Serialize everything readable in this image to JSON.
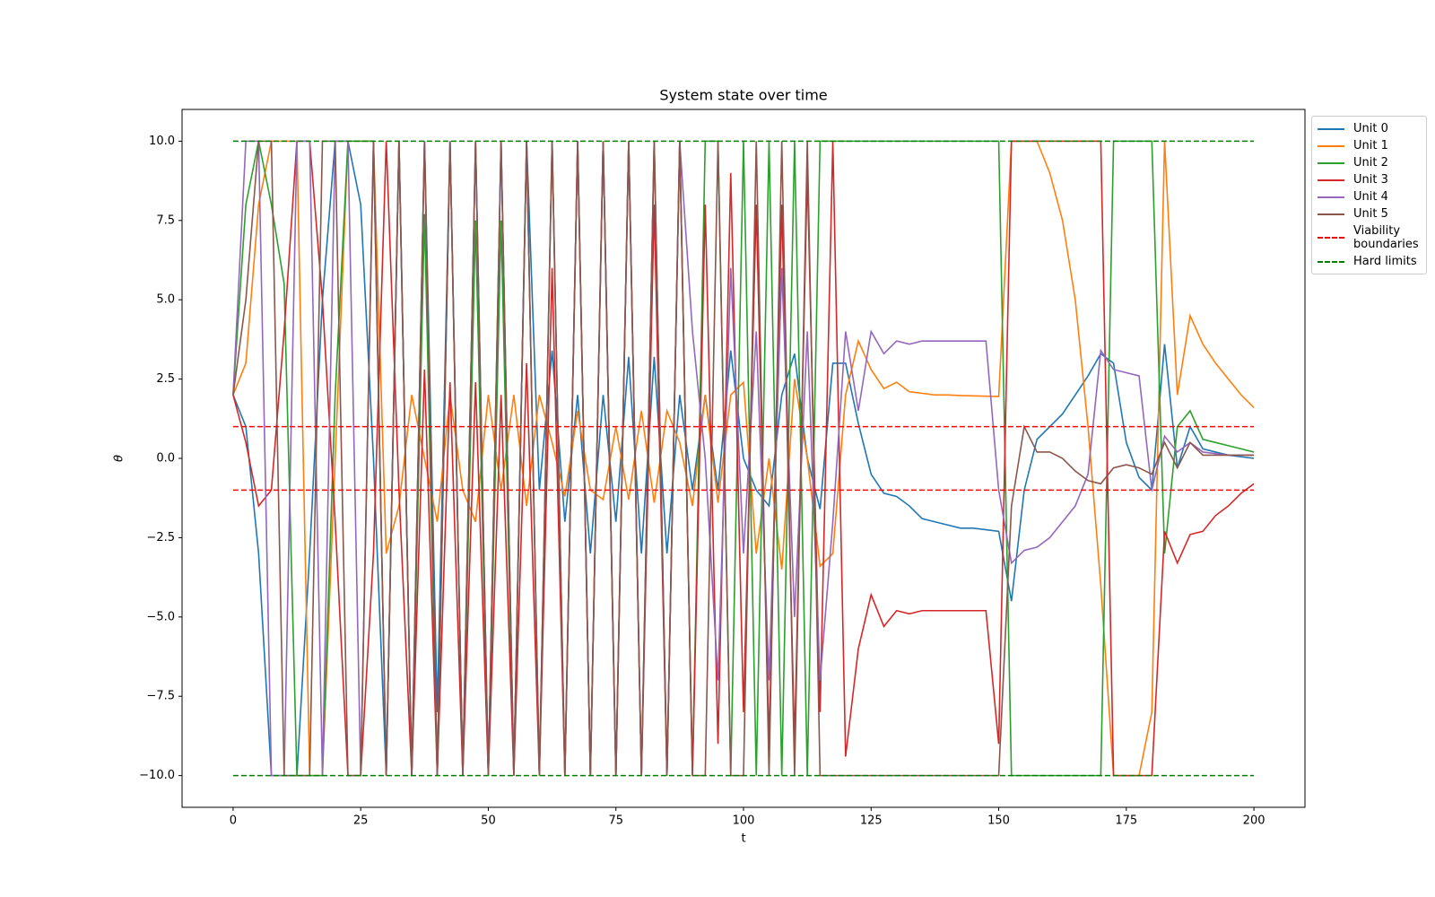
{
  "chart_data": {
    "type": "line",
    "title": "System state over time",
    "xlabel": "t",
    "ylabel": "θ",
    "x": [
      0,
      2.5,
      5,
      7.5,
      10,
      12.5,
      15,
      17.5,
      20,
      22.5,
      25,
      27.5,
      30,
      32.5,
      35,
      37.5,
      40,
      42.5,
      45,
      47.5,
      50,
      52.5,
      55,
      57.5,
      60,
      62.5,
      65,
      67.5,
      70,
      72.5,
      75,
      77.5,
      80,
      82.5,
      85,
      87.5,
      90,
      92.5,
      95,
      97.5,
      100,
      102.5,
      105,
      107.5,
      110,
      112.5,
      115,
      117.5,
      120,
      122.5,
      125,
      127.5,
      130,
      132.5,
      135,
      137.5,
      140,
      142.5,
      145,
      147.5,
      150,
      152.5,
      155,
      157.5,
      160,
      162.5,
      165,
      167.5,
      170,
      172.5,
      175,
      177.5,
      180,
      182.5,
      185,
      187.5,
      190,
      192.5,
      195,
      197.5,
      200
    ],
    "series": [
      {
        "name": "Unit 0",
        "color": "#1f77b4",
        "values": [
          2,
          1,
          -3,
          -10,
          -10,
          -10,
          -3,
          5,
          10,
          10,
          8,
          0,
          -10,
          10,
          -10,
          10,
          -8,
          10,
          -10,
          10,
          -10,
          10,
          -10,
          10,
          -1,
          3.4,
          -2,
          2,
          -3,
          2,
          -2,
          3.2,
          -3,
          3.2,
          -3,
          2,
          -1,
          2,
          -1,
          3.4,
          0,
          -1,
          -1.5,
          2,
          3.3,
          0,
          -1.6,
          3,
          3,
          1.1,
          -0.5,
          -1.1,
          -1.2,
          -1.5,
          -1.9,
          -2,
          -2.1,
          -2.2,
          -2.2,
          -2.25,
          -2.3,
          -4.5,
          -1,
          0.6,
          1,
          1.4,
          2,
          2.6,
          3.3,
          3,
          0.5,
          -0.6,
          -1,
          3.6,
          -0.3,
          1,
          0.3,
          0.2,
          0.1,
          0.05,
          0
        ]
      },
      {
        "name": "Unit 1",
        "color": "#ff7f0e",
        "values": [
          2,
          3,
          8,
          10,
          10,
          10,
          -10,
          -10,
          0,
          10,
          10,
          10,
          -3,
          -1.5,
          2,
          0,
          -2,
          2,
          -1,
          -2,
          2,
          -1,
          2,
          -1.5,
          2,
          0.5,
          -1.2,
          1.5,
          -1,
          -1.3,
          1,
          -1.3,
          1.5,
          -1.4,
          1.5,
          0.5,
          -1.5,
          2,
          -1.4,
          2,
          2.4,
          -3,
          0,
          -3.5,
          2.5,
          0,
          -3.4,
          -3,
          2,
          3.7,
          2.8,
          2.2,
          2.4,
          2.1,
          2.05,
          2,
          2,
          1.98,
          1.97,
          1.96,
          1.95,
          10,
          10,
          10,
          9,
          7.5,
          5,
          1,
          -4,
          -10,
          -10,
          -10,
          -8,
          10,
          2,
          4.5,
          3.6,
          3,
          2.5,
          2,
          1.6
        ]
      },
      {
        "name": "Unit 2",
        "color": "#2ca02c",
        "values": [
          2,
          8,
          10,
          8,
          5.5,
          -10,
          -10,
          -10,
          2,
          10,
          10,
          10,
          -10,
          10,
          -10,
          7.7,
          -10,
          10,
          -10,
          7.5,
          -10,
          7.5,
          -10,
          10,
          -10,
          10,
          -10,
          10,
          -10,
          10,
          -10,
          10,
          -10,
          10,
          -10,
          10,
          -10,
          10,
          10,
          -10,
          10,
          -10,
          10,
          -10,
          10,
          -10,
          10,
          10,
          10,
          10,
          10,
          10,
          10,
          10,
          10,
          10,
          10,
          10,
          10,
          10,
          10,
          -10,
          -10,
          -10,
          -10,
          -10,
          -10,
          -10,
          -10,
          10,
          10,
          10,
          10,
          -3,
          1,
          1.5,
          0.6,
          0.5,
          0.4,
          0.3,
          0.2
        ]
      },
      {
        "name": "Unit 3",
        "color": "#d62728",
        "values": [
          2,
          0.5,
          -1.5,
          -1,
          4,
          10,
          10,
          5,
          -2,
          -10,
          -10,
          -3,
          10,
          -1,
          -10,
          2.8,
          -10,
          2.4,
          -10,
          2.4,
          -10,
          2,
          -10,
          3,
          -10,
          6,
          -10,
          10,
          -10,
          10,
          -10,
          10,
          -10,
          8,
          -10,
          10,
          -10,
          8,
          -9,
          9,
          -8,
          8,
          -9,
          8,
          -9,
          9,
          -8,
          10,
          -9.4,
          -6,
          -4.3,
          -5.3,
          -4.8,
          -4.9,
          -4.8,
          -4.8,
          -4.8,
          -4.8,
          -4.8,
          -4.8,
          -9,
          10,
          10,
          10,
          10,
          10,
          10,
          10,
          10,
          -10,
          -10,
          -10,
          -10,
          -2.3,
          -3.3,
          -2.4,
          -2.3,
          -1.8,
          -1.5,
          -1.1,
          -0.8
        ]
      },
      {
        "name": "Unit 4",
        "color": "#9467bd",
        "values": [
          2,
          10,
          10,
          -10,
          -10,
          10,
          10,
          -10,
          10,
          10,
          -10,
          10,
          -10,
          10,
          -10,
          10,
          -10,
          10,
          -10,
          10,
          -10,
          10,
          -10,
          10,
          -10,
          10,
          -10,
          10,
          -10,
          10,
          -10,
          10,
          -10,
          10,
          -10,
          10,
          4,
          0,
          -7,
          6,
          -3,
          4,
          -7,
          6,
          -5,
          4,
          -7,
          -2,
          4,
          1.5,
          4,
          3.3,
          3.7,
          3.6,
          3.7,
          3.7,
          3.7,
          3.7,
          3.7,
          3.7,
          -1,
          -3.3,
          -2.9,
          -2.8,
          -2.5,
          -2,
          -1.5,
          -0.5,
          3.4,
          2.8,
          2.7,
          2.6,
          -1,
          0.7,
          0.2,
          0.5,
          0.2,
          0.15,
          0.1,
          0.1,
          0.1
        ]
      },
      {
        "name": "Unit 5",
        "color": "#8c564b",
        "values": [
          2,
          5,
          10,
          10,
          -10,
          -10,
          -10,
          10,
          10,
          -10,
          -10,
          10,
          -10,
          10,
          -10,
          10,
          -10,
          10,
          -10,
          10,
          -10,
          10,
          -10,
          10,
          -10,
          10,
          -10,
          10,
          -10,
          10,
          -10,
          10,
          -10,
          10,
          -10,
          10,
          -10,
          -10,
          10,
          -10,
          -10,
          10,
          -10,
          10,
          -10,
          10,
          -10,
          -10,
          -10,
          -10,
          -10,
          -10,
          -10,
          -10,
          -10,
          -10,
          -10,
          -10,
          -10,
          -10,
          -10,
          -1.5,
          1,
          0.2,
          0.2,
          0,
          -0.4,
          -0.7,
          -0.8,
          -0.3,
          -0.2,
          -0.3,
          -0.5,
          0.5,
          -0.3,
          0.5,
          0.1,
          0.1,
          0.1,
          0.1,
          0.1
        ]
      }
    ],
    "reference_lines": [
      {
        "name": "Viability boundaries",
        "color": "#ff0000",
        "style": "dashed",
        "values": [
          -1,
          1
        ]
      },
      {
        "name": "Hard limits",
        "color": "#008000",
        "style": "dashed",
        "values": [
          -10,
          10
        ]
      }
    ],
    "xlim": [
      -10,
      210
    ],
    "xticks": [
      0,
      25,
      50,
      75,
      100,
      125,
      150,
      175,
      200
    ],
    "ylim": [
      -11,
      11
    ],
    "yticks": [
      {
        "value": -10,
        "label": "−10.0"
      },
      {
        "value": -7.5,
        "label": "−7.5"
      },
      {
        "value": -5,
        "label": "−5.0"
      },
      {
        "value": -2.5,
        "label": "−2.5"
      },
      {
        "value": 0,
        "label": "0.0"
      },
      {
        "value": 2.5,
        "label": "2.5"
      },
      {
        "value": 5,
        "label": "5.0"
      },
      {
        "value": 7.5,
        "label": "7.5"
      },
      {
        "value": 10,
        "label": "10.0"
      }
    ],
    "legend": "outside upper right"
  }
}
